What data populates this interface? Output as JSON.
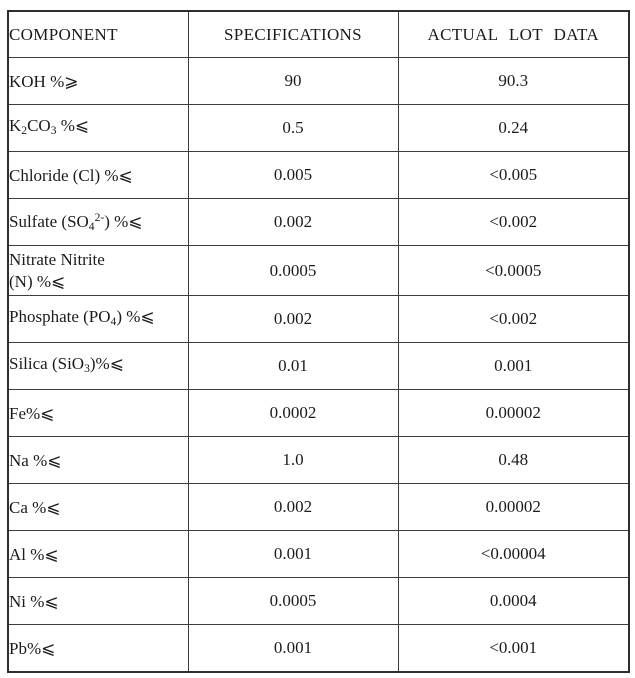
{
  "table": {
    "headers": [
      "COMPONENT",
      "SPECIFICATIONS",
      "ACTUAL LOT DATA"
    ],
    "rows": [
      {
        "component": [
          {
            "t": "KOH %⩾"
          }
        ],
        "spec": "90",
        "actual": "90.3"
      },
      {
        "component": [
          {
            "t": "K"
          },
          {
            "t": "2",
            "sub": true
          },
          {
            "t": "CO"
          },
          {
            "t": "3",
            "sub": true
          },
          {
            "t": " %⩽"
          }
        ],
        "spec": "0.5",
        "actual": "0.24"
      },
      {
        "component": [
          {
            "t": "Chloride (Cl) %⩽"
          }
        ],
        "spec": "0.005",
        "actual": "<0.005"
      },
      {
        "component": [
          {
            "t": "Sulfate (SO"
          },
          {
            "t": "4",
            "sub": true
          },
          {
            "t": "2-",
            "sup": true
          },
          {
            "t": ") %⩽"
          }
        ],
        "spec": "0.002",
        "actual": "<0.002"
      },
      {
        "component": [
          {
            "t": "Nitrate Nitrite"
          },
          {
            "t": "(N) %⩽",
            "nl": true
          }
        ],
        "spec": "0.0005",
        "actual": "<0.0005",
        "two_line": true
      },
      {
        "component": [
          {
            "t": "Phosphate (PO"
          },
          {
            "t": "4",
            "sub": true
          },
          {
            "t": ") %⩽"
          }
        ],
        "spec": "0.002",
        "actual": "<0.002"
      },
      {
        "component": [
          {
            "t": "Silica (SiO"
          },
          {
            "t": "3",
            "sub": true
          },
          {
            "t": ")%⩽"
          }
        ],
        "spec": "0.01",
        "actual": "0.001"
      },
      {
        "component": [
          {
            "t": "Fe%⩽"
          }
        ],
        "spec": "0.0002",
        "actual": "0.00002"
      },
      {
        "component": [
          {
            "t": "Na %⩽"
          }
        ],
        "spec": "1.0",
        "actual": "0.48"
      },
      {
        "component": [
          {
            "t": "Ca %⩽"
          }
        ],
        "spec": "0.002",
        "actual": "0.00002"
      },
      {
        "component": [
          {
            "t": "Al %⩽"
          }
        ],
        "spec": "0.001",
        "actual": "<0.00004"
      },
      {
        "component": [
          {
            "t": "Ni %⩽"
          }
        ],
        "spec": "0.0005",
        "actual": "0.0004"
      },
      {
        "component": [
          {
            "t": "Pb%⩽"
          }
        ],
        "spec": "0.001",
        "actual": "<0.001"
      }
    ]
  }
}
